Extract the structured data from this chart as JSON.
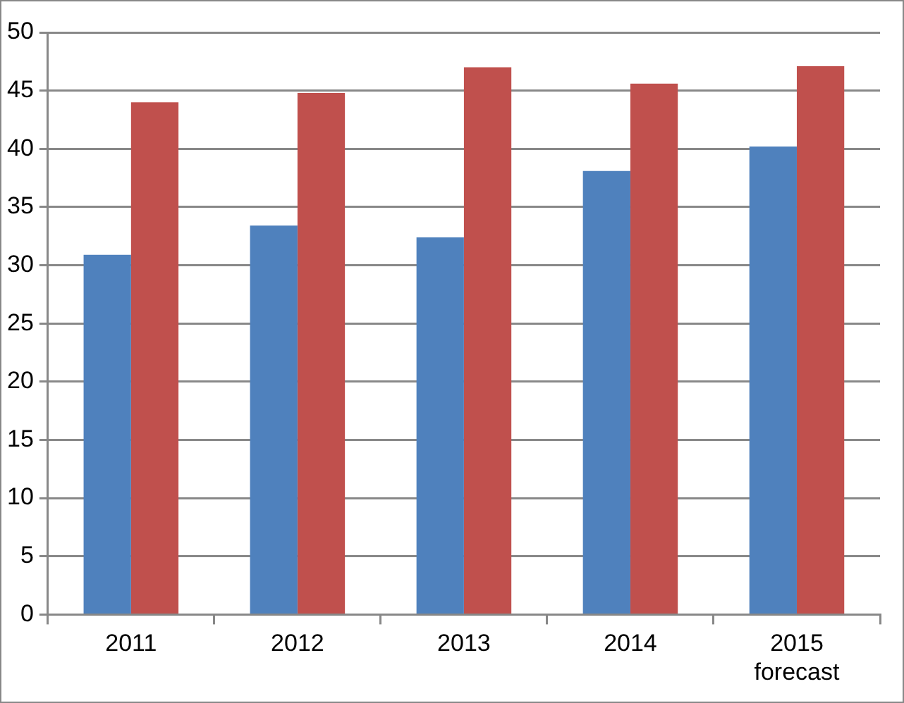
{
  "chart_data": {
    "type": "bar",
    "categories": [
      "2011",
      "2012",
      "2013",
      "2014",
      "2015\nforecast"
    ],
    "series": [
      {
        "color": "#4f81bd",
        "values": [
          30.9,
          33.4,
          32.4,
          38.1,
          40.2
        ]
      },
      {
        "color": "#c0504d",
        "values": [
          44.0,
          44.8,
          47.0,
          45.6,
          47.1
        ]
      }
    ],
    "ylim": [
      0,
      50
    ],
    "yticks": [
      0,
      5,
      10,
      15,
      20,
      25,
      30,
      35,
      40,
      45,
      50
    ],
    "grid": "y",
    "legend": false
  }
}
